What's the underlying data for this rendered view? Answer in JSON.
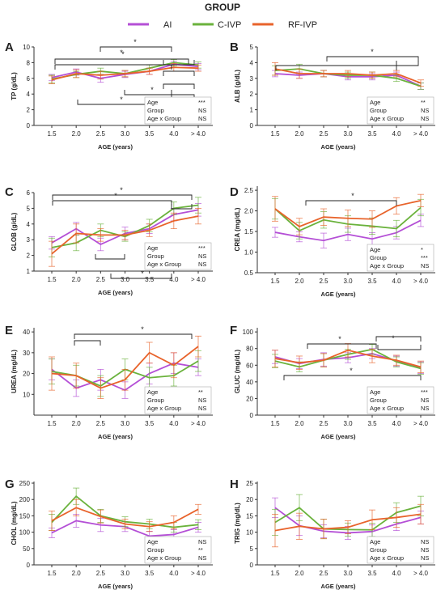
{
  "legend": {
    "title": "GROUP",
    "entries": [
      {
        "name": "AI",
        "color": "#b44fd6"
      },
      {
        "name": "C-IVP",
        "color": "#6ab23c"
      },
      {
        "name": "RF-IVP",
        "color": "#e8632b"
      }
    ]
  },
  "chart_data": [
    {
      "panel": "A",
      "type": "line",
      "categories": [
        "1.5",
        "2.0",
        "2.5",
        "3.0",
        "3.5",
        "4.0",
        "> 4.0"
      ],
      "xlabel": "AGE (years)",
      "ylabel": "TP (g/dL)",
      "ylim": [
        0,
        10
      ],
      "yticks": [
        0,
        2,
        4,
        6,
        8,
        10
      ],
      "ytick_labels": [
        "0",
        "2",
        "4",
        "6",
        "8",
        "10"
      ],
      "series": [
        {
          "name": "AI",
          "values": [
            6.1,
            6.8,
            6.0,
            6.5,
            6.9,
            7.8,
            7.5
          ],
          "err": [
            0.4,
            0.4,
            0.5,
            0.4,
            0.4,
            0.4,
            0.4
          ]
        },
        {
          "name": "C-IVP",
          "values": [
            5.9,
            6.5,
            6.9,
            6.6,
            7.3,
            8.0,
            7.7
          ],
          "err": [
            0.5,
            0.4,
            0.4,
            0.4,
            0.4,
            0.4,
            0.4
          ]
        },
        {
          "name": "RF-IVP",
          "values": [
            5.8,
            6.6,
            6.4,
            6.6,
            6.9,
            7.4,
            7.3
          ],
          "err": [
            0.5,
            0.5,
            0.5,
            0.4,
            0.4,
            0.5,
            0.4
          ]
        }
      ],
      "stats": [
        {
          "label": "Age",
          "value": "***"
        },
        {
          "label": "Group",
          "value": "NS"
        },
        {
          "label": "Age x Group",
          "value": "NS"
        }
      ],
      "annotations": [
        "*",
        "*",
        "*",
        "*",
        "*"
      ]
    },
    {
      "panel": "B",
      "type": "line",
      "categories": [
        "1.5",
        "2.0",
        "2.5",
        "3.0",
        "3.5",
        "4.0",
        "> 4.0"
      ],
      "xlabel": "AGE (years)",
      "ylabel": "ALB (g/dL)",
      "ylim": [
        0,
        5
      ],
      "yticks": [
        0,
        1,
        2,
        3,
        4,
        5
      ],
      "ytick_labels": [
        "0",
        "1",
        "2",
        "3",
        "4",
        "5"
      ],
      "series": [
        {
          "name": "AI",
          "values": [
            3.3,
            3.2,
            3.3,
            3.1,
            3.1,
            3.2,
            2.5
          ],
          "err": [
            0.2,
            0.2,
            0.2,
            0.2,
            0.2,
            0.2,
            0.2
          ]
        },
        {
          "name": "C-IVP",
          "values": [
            3.5,
            3.6,
            3.3,
            3.2,
            3.2,
            3.0,
            2.5
          ],
          "err": [
            0.3,
            0.3,
            0.2,
            0.2,
            0.2,
            0.2,
            0.2
          ]
        },
        {
          "name": "RF-IVP",
          "values": [
            3.6,
            3.3,
            3.3,
            3.3,
            3.2,
            3.3,
            2.7
          ],
          "err": [
            0.4,
            0.3,
            0.2,
            0.2,
            0.2,
            0.2,
            0.2
          ]
        }
      ],
      "stats": [
        {
          "label": "Age",
          "value": "**"
        },
        {
          "label": "Group",
          "value": "NS"
        },
        {
          "label": "Age x Group",
          "value": "NS"
        }
      ],
      "annotations": [
        "*"
      ]
    },
    {
      "panel": "C",
      "type": "line",
      "categories": [
        "1.5",
        "2.0",
        "2.5",
        "3.0",
        "3.5",
        "4.0",
        "> 4.0"
      ],
      "xlabel": "AGE (years)",
      "ylabel": "GLOB (g/dL)",
      "ylim": [
        1,
        6
      ],
      "yticks": [
        1,
        2,
        3,
        4,
        5,
        6
      ],
      "ytick_labels": [
        "1",
        "2",
        "3",
        "4",
        "5",
        "6"
      ],
      "series": [
        {
          "name": "AI",
          "values": [
            2.8,
            3.7,
            2.7,
            3.4,
            3.7,
            4.6,
            4.9
          ],
          "err": [
            0.4,
            0.4,
            0.4,
            0.4,
            0.3,
            0.4,
            0.4
          ]
        },
        {
          "name": "C-IVP",
          "values": [
            2.5,
            2.8,
            3.6,
            3.2,
            3.9,
            5.0,
            5.2
          ],
          "err": [
            0.6,
            0.5,
            0.4,
            0.3,
            0.4,
            0.4,
            0.5
          ]
        },
        {
          "name": "RF-IVP",
          "values": [
            2.1,
            3.4,
            3.3,
            3.3,
            3.6,
            4.2,
            4.5
          ],
          "err": [
            0.8,
            0.6,
            0.4,
            0.3,
            0.4,
            0.5,
            0.5
          ]
        }
      ],
      "stats": [
        {
          "label": "Age",
          "value": "***"
        },
        {
          "label": "Group",
          "value": "NS"
        },
        {
          "label": "Age x Group",
          "value": "NS"
        }
      ],
      "annotations": [
        "*",
        "*",
        "*"
      ]
    },
    {
      "panel": "D",
      "type": "line",
      "categories": [
        "1.5",
        "2.0",
        "2.5",
        "3.0",
        "3.5",
        "4.0",
        "> 4.0"
      ],
      "xlabel": "AGE (years)",
      "ylabel": "CREA (mg/dL)",
      "ylim": [
        0.5,
        2.6
      ],
      "yticks": [
        0.5,
        1.0,
        1.5,
        2.0,
        2.5
      ],
      "ytick_labels": [
        "0.5",
        "1.0",
        "1.5",
        "2.0",
        "2.5"
      ],
      "series": [
        {
          "name": "AI",
          "values": [
            1.48,
            1.37,
            1.28,
            1.43,
            1.32,
            1.47,
            1.77
          ],
          "err": [
            0.12,
            0.12,
            0.18,
            0.15,
            0.15,
            0.15,
            0.15
          ]
        },
        {
          "name": "C-IVP",
          "values": [
            2.05,
            1.52,
            1.78,
            1.68,
            1.63,
            1.57,
            2.08
          ],
          "err": [
            0.25,
            0.2,
            0.2,
            0.2,
            0.2,
            0.2,
            0.2
          ]
        },
        {
          "name": "RF-IVP",
          "values": [
            2.05,
            1.62,
            1.85,
            1.82,
            1.8,
            2.12,
            2.25
          ],
          "err": [
            0.3,
            0.2,
            0.2,
            0.2,
            0.2,
            0.2,
            0.15
          ]
        }
      ],
      "stats": [
        {
          "label": "Age",
          "value": "*"
        },
        {
          "label": "Group",
          "value": "***"
        },
        {
          "label": "Age x Group",
          "value": "NS"
        }
      ],
      "annotations": [
        "*"
      ]
    },
    {
      "panel": "E",
      "type": "line",
      "categories": [
        "1.5",
        "2.0",
        "2.5",
        "3.0",
        "3.5",
        "4.0",
        "> 4.0"
      ],
      "xlabel": "AGE (years)",
      "ylabel": "UREA (mg/dL)",
      "ylim": [
        0,
        42
      ],
      "yticks": [
        10,
        20,
        30,
        40
      ],
      "ytick_labels": [
        "10",
        "20",
        "30",
        "40"
      ],
      "series": [
        {
          "name": "AI",
          "values": [
            22,
            13,
            17,
            12,
            20,
            25,
            23
          ],
          "err": [
            5,
            4,
            5,
            4,
            5,
            5,
            4
          ]
        },
        {
          "name": "C-IVP",
          "values": [
            21,
            19,
            14,
            22,
            18,
            19,
            26
          ],
          "err": [
            6,
            5,
            5,
            5,
            5,
            5,
            5
          ]
        },
        {
          "name": "RF-IVP",
          "values": [
            20,
            19,
            13,
            17,
            30,
            24,
            33
          ],
          "err": [
            8,
            6,
            5,
            5,
            5,
            6,
            5
          ]
        }
      ],
      "stats": [
        {
          "label": "Age",
          "value": "**"
        },
        {
          "label": "Group",
          "value": "NS"
        },
        {
          "label": "Age x Group",
          "value": "NS"
        }
      ],
      "annotations": [
        "*"
      ]
    },
    {
      "panel": "F",
      "type": "line",
      "categories": [
        "1.5",
        "2.0",
        "2.5",
        "3.0",
        "3.5",
        "4.0",
        "> 4.0"
      ],
      "xlabel": "AGE (years)",
      "ylabel": "GLUC (mg/dL)",
      "ylim": [
        0,
        105
      ],
      "yticks": [
        0,
        20,
        40,
        60,
        80,
        100
      ],
      "ytick_labels": [
        "0",
        "20",
        "40",
        "60",
        "80",
        "100"
      ],
      "series": [
        {
          "name": "AI",
          "values": [
            70,
            62,
            67,
            69,
            74,
            65,
            57
          ],
          "err": [
            8,
            6,
            8,
            6,
            6,
            6,
            7
          ]
        },
        {
          "name": "C-IVP",
          "values": [
            65,
            58,
            66,
            73,
            79,
            64,
            56
          ],
          "err": [
            8,
            6,
            8,
            6,
            6,
            6,
            7
          ]
        },
        {
          "name": "RF-IVP",
          "values": [
            68,
            63,
            66,
            78,
            71,
            66,
            58
          ],
          "err": [
            10,
            8,
            8,
            8,
            8,
            6,
            7
          ]
        }
      ],
      "stats": [
        {
          "label": "Age",
          "value": "***"
        },
        {
          "label": "Group",
          "value": "NS"
        },
        {
          "label": "Age x Group",
          "value": "NS"
        }
      ],
      "annotations": [
        "*",
        "*",
        "*"
      ]
    },
    {
      "panel": "G",
      "type": "line",
      "categories": [
        "1.5",
        "2.0",
        "2.5",
        "3.0",
        "3.5",
        "4.0",
        "> 4.0"
      ],
      "xlabel": "AGE (years)",
      "ylabel": "CHOL (mg/dL)",
      "ylim": [
        0,
        255
      ],
      "yticks": [
        0,
        50,
        100,
        150,
        200,
        250
      ],
      "ytick_labels": [
        "0",
        "50",
        "100",
        "150",
        "200",
        "250"
      ],
      "series": [
        {
          "name": "AI",
          "values": [
            98,
            135,
            122,
            117,
            88,
            93,
            115
          ],
          "err": [
            15,
            20,
            20,
            15,
            15,
            15,
            15
          ]
        },
        {
          "name": "C-IVP",
          "values": [
            130,
            210,
            150,
            132,
            125,
            115,
            123
          ],
          "err": [
            25,
            25,
            20,
            15,
            15,
            15,
            15
          ]
        },
        {
          "name": "RF-IVP",
          "values": [
            135,
            175,
            148,
            125,
            117,
            130,
            170
          ],
          "err": [
            30,
            25,
            20,
            15,
            15,
            20,
            15
          ]
        }
      ],
      "stats": [
        {
          "label": "Age",
          "value": "NS"
        },
        {
          "label": "Group",
          "value": "**"
        },
        {
          "label": "Age x Group",
          "value": "NS"
        }
      ],
      "annotations": []
    },
    {
      "panel": "H",
      "type": "line",
      "categories": [
        "1.5",
        "2.0",
        "2.5",
        "3.0",
        "3.5",
        "4.0",
        "> 4.0"
      ],
      "xlabel": "AGE (years)",
      "ylabel": "TRIG (mg/dL)",
      "ylim": [
        0,
        25.5
      ],
      "yticks": [
        0,
        5,
        10,
        15,
        20,
        25
      ],
      "ytick_labels": [
        "0",
        "5",
        "10",
        "15",
        "20",
        "25"
      ],
      "series": [
        {
          "name": "AI",
          "values": [
            17.5,
            12.0,
            10.3,
            9.8,
            10.2,
            12.5,
            14.5
          ],
          "err": [
            3,
            3,
            2,
            2,
            2,
            2,
            2
          ]
        },
        {
          "name": "C-IVP",
          "values": [
            13.0,
            17.5,
            11.0,
            10.8,
            10.7,
            16.0,
            18.0
          ],
          "err": [
            4,
            4,
            3,
            2,
            2,
            3,
            3
          ]
        },
        {
          "name": "RF-IVP",
          "values": [
            10.5,
            11.8,
            11.0,
            11.5,
            13.8,
            14.5,
            15.5
          ],
          "err": [
            5,
            4,
            3,
            2,
            3,
            3,
            3
          ]
        }
      ],
      "stats": [
        {
          "label": "Age",
          "value": "NS"
        },
        {
          "label": "Group",
          "value": "NS"
        },
        {
          "label": "Age x Group",
          "value": "NS"
        }
      ],
      "annotations": []
    }
  ]
}
